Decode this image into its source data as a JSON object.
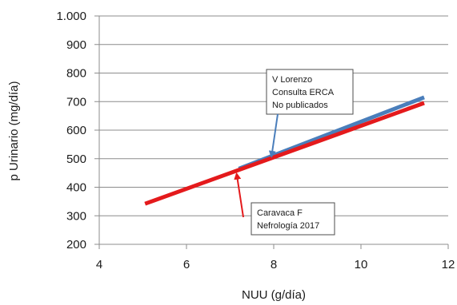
{
  "chart_data": {
    "type": "line",
    "title": "",
    "xlabel": "NUU (g/día)",
    "ylabel": "p Urinario (mg/día)",
    "xlim": [
      4,
      12
    ],
    "ylim": [
      200,
      1000
    ],
    "xticks": [
      4,
      6,
      8,
      10,
      12
    ],
    "xtick_labels": [
      "4",
      "6",
      "8",
      "10",
      "12"
    ],
    "yticks": [
      200,
      300,
      400,
      500,
      600,
      700,
      800,
      900,
      1000
    ],
    "ytick_labels": [
      "200",
      "300",
      "400",
      "500",
      "600",
      "700",
      "800",
      "900",
      "1.000"
    ],
    "grid": "horizontal",
    "series": [
      {
        "name": "V Lorenzo Consulta ERCA No publicados",
        "color": "#4a7ebb",
        "x": [
          7.2,
          11.45
        ],
        "y": [
          465,
          715
        ]
      },
      {
        "name": "Caravaca F Nefrología 2017",
        "color": "#e41a1c",
        "x": [
          5.05,
          11.45
        ],
        "y": [
          342,
          695
        ]
      }
    ],
    "annotations": [
      {
        "lines": [
          "V Lorenzo",
          "Consulta ERCA",
          "No publicados"
        ],
        "series": 0,
        "arrow_color": "#4a7ebb",
        "arrow_target": [
          7.95,
          508
        ]
      },
      {
        "lines": [
          "Caravaca F",
          "Nefrología 2017"
        ],
        "series": 1,
        "arrow_color": "#e41a1c",
        "arrow_target": [
          7.15,
          447
        ]
      }
    ]
  }
}
